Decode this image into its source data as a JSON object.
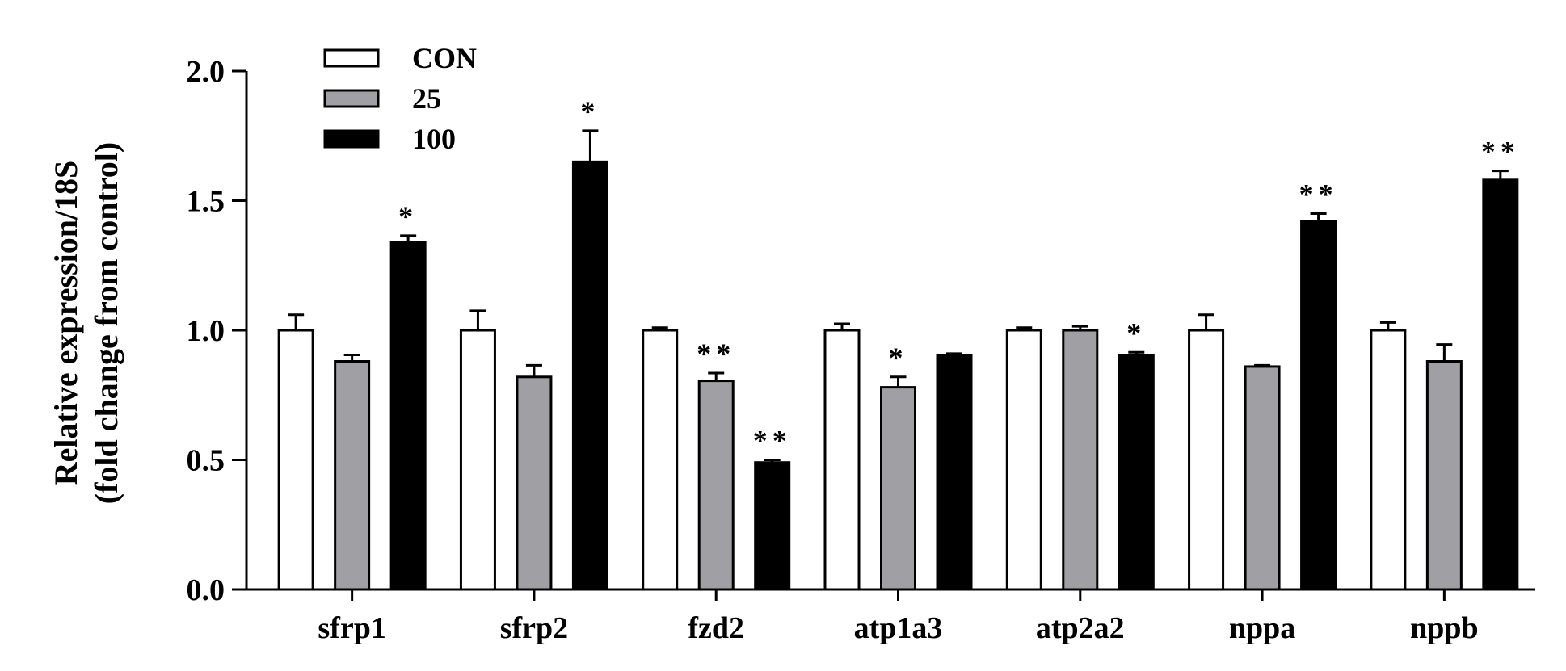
{
  "chart_data": {
    "type": "bar",
    "ylabel_line1": "Relative expression/18S",
    "ylabel_line2": "(fold change from control)",
    "ylim": [
      0,
      2.0
    ],
    "yticks": [
      "0.0",
      "0.5",
      "1.0",
      "1.5",
      "2.0"
    ],
    "ytick_values": [
      0,
      0.5,
      1.0,
      1.5,
      2.0
    ],
    "categories": [
      "sfrp1",
      "sfrp2",
      "fzd2",
      "atp1a3",
      "atp2a2",
      "nppa",
      "nppb"
    ],
    "legend_placement": "top-left",
    "series": [
      {
        "name": "CON",
        "color": "#ffffff",
        "values": [
          1.0,
          1.0,
          1.0,
          1.0,
          1.0,
          1.0,
          1.0
        ],
        "errors": [
          0.06,
          0.075,
          0.01,
          0.025,
          0.01,
          0.06,
          0.03
        ],
        "significance": [
          "",
          "",
          "",
          "",
          "",
          "",
          ""
        ]
      },
      {
        "name": "25",
        "color": "#a0a0a4",
        "values": [
          0.88,
          0.82,
          0.805,
          0.78,
          1.0,
          0.86,
          0.88
        ],
        "errors": [
          0.025,
          0.045,
          0.03,
          0.04,
          0.015,
          0.005,
          0.065
        ],
        "significance": [
          "",
          "",
          "**",
          "*",
          "",
          "",
          ""
        ]
      },
      {
        "name": "100",
        "color": "#000000",
        "values": [
          1.34,
          1.65,
          0.49,
          0.905,
          0.905,
          1.42,
          1.58
        ],
        "errors": [
          0.025,
          0.12,
          0.01,
          0.005,
          0.01,
          0.03,
          0.035
        ],
        "significance": [
          "*",
          "*",
          "**",
          "",
          "*",
          "**",
          "**"
        ]
      }
    ]
  }
}
